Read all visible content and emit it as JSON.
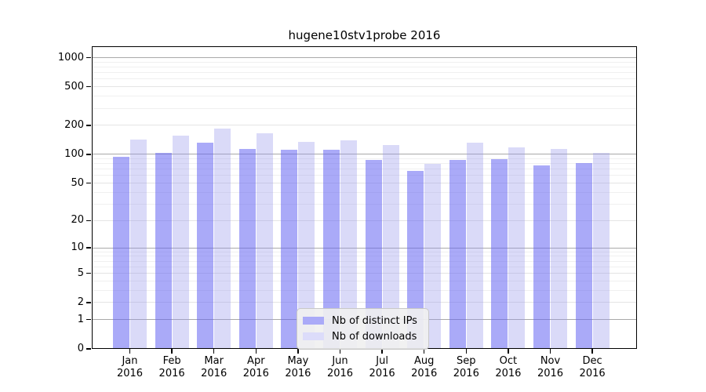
{
  "window": {
    "title": "hugene10stv1probe 2016"
  },
  "chart_data": {
    "type": "bar",
    "title": "hugene10stv1probe 2016",
    "categories": [
      "Jan",
      "Feb",
      "Mar",
      "Apr",
      "May",
      "Jun",
      "Jul",
      "Aug",
      "Sep",
      "Oct",
      "Nov",
      "Dec"
    ],
    "year_label": "2016",
    "series": [
      {
        "name": "Nb of distinct IPs",
        "color": "#aaaaf8",
        "fill_rgba": "rgba(100,100,242,0.55)",
        "values": [
          95,
          104,
          131,
          114,
          112,
          112,
          88,
          67,
          87,
          89,
          77,
          81
        ]
      },
      {
        "name": "Nb of downloads",
        "color": "#dcdcfa",
        "fill_rgba": "rgba(149,149,235,0.35)",
        "values": [
          142,
          156,
          186,
          164,
          135,
          140,
          125,
          80,
          132,
          118,
          113,
          103
        ]
      }
    ],
    "xlabel": "",
    "ylabel": "",
    "scale": "log1p",
    "y_ticks": [
      1000,
      500,
      200,
      100,
      50,
      20,
      10,
      5,
      2,
      1,
      0
    ],
    "y_major_ticks": [
      1,
      10,
      100,
      1000
    ],
    "y_minor_gridlines": [
      3,
      4,
      6,
      7,
      8,
      9,
      30,
      40,
      60,
      70,
      80,
      90,
      300,
      400,
      600,
      700,
      800,
      900
    ],
    "ylim": [
      0,
      1310
    ],
    "grid": true,
    "legend_position": "lower-center-inside",
    "legend_entries": [
      "Nb of distinct IPs",
      "Nb of downloads"
    ]
  }
}
